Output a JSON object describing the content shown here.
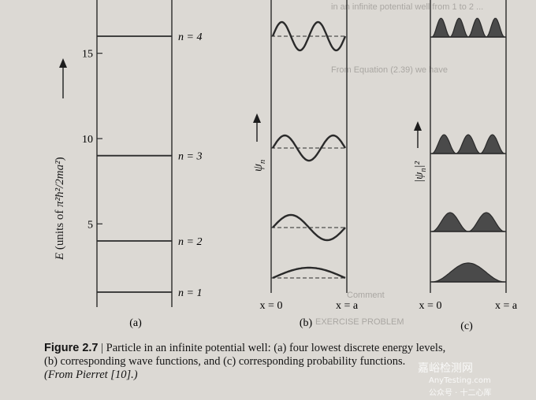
{
  "panel_a": {
    "label": "(a)",
    "y_axis_label_prefix": "E",
    "y_axis_label_units": "units of",
    "y_axis_fraction_num": "π²ħ²",
    "y_axis_fraction_den": "2ma²",
    "ticks": [
      {
        "value": 5,
        "label": "5"
      },
      {
        "value": 10,
        "label": "10"
      },
      {
        "value": 15,
        "label": "15"
      }
    ],
    "levels": [
      {
        "n": 1,
        "energy": 1,
        "label": "n = 1"
      },
      {
        "n": 2,
        "energy": 4,
        "label": "n = 2"
      },
      {
        "n": 3,
        "energy": 9,
        "label": "n = 3"
      },
      {
        "n": 4,
        "energy": 16,
        "label": "n = 4"
      }
    ]
  },
  "panel_b": {
    "label": "(b)",
    "y_axis_label": "ψ",
    "y_axis_sub": "n",
    "x_left_label": "x = 0",
    "x_right_label": "x = a"
  },
  "panel_c": {
    "label": "(c)",
    "y_axis_label": "|ψ",
    "y_axis_sub": "n",
    "y_axis_sup": "|²",
    "x_left_label": "x = 0",
    "x_right_label": "x = a"
  },
  "caption": {
    "figure_label": "Figure 2.7",
    "separator": " | ",
    "line1": "Particle in an infinite potential well: (a) four lowest discrete energy levels,",
    "line2": "(b) corresponding wave functions, and (c) corresponding probability functions.",
    "line3": "(From Pierret [10].)"
  },
  "watermark": {
    "main": "嘉峪检测网",
    "sub": "AnyTesting.com",
    "account": "公众号 · 十二心厍"
  },
  "colors": {
    "paper": "#dcd9d4",
    "ink": "#2a2a2a",
    "fill": "#4a4a4a"
  }
}
